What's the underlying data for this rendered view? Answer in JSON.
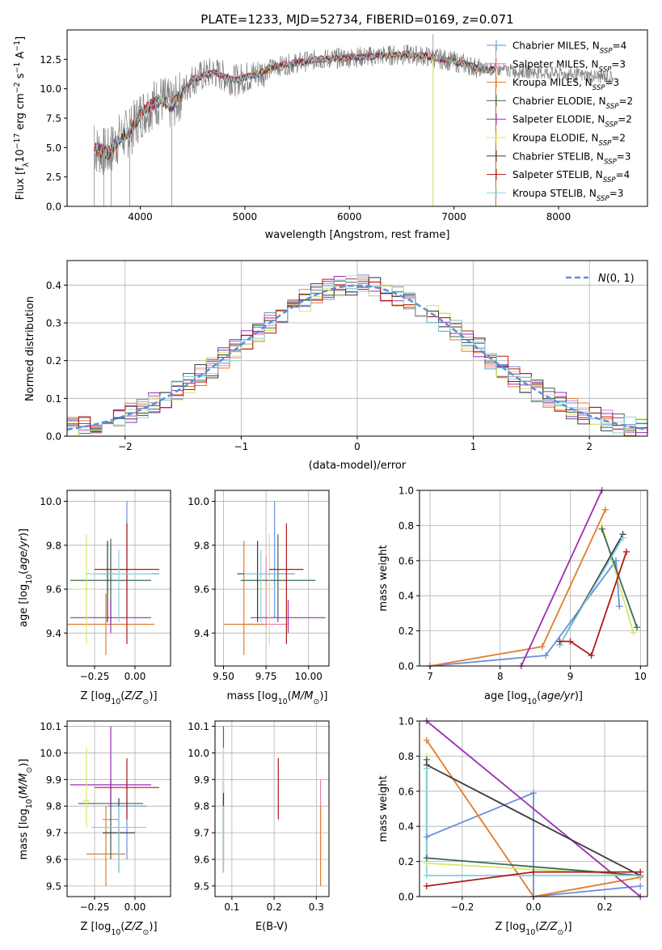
{
  "figure": {
    "title": "PLATE=1233, MJD=52734, FIBERID=0169, z=0.071"
  },
  "colors": {
    "Chabrier MILES": "#6a8fdc",
    "Salpeter MILES": "#ec7fb0",
    "Kroupa MILES": "#e07b2c",
    "Chabrier ELODIE": "#3b6b57",
    "Salpeter ELODIE": "#9a2fb5",
    "Kroupa ELODIE": "#d6e86a",
    "Chabrier STELIB": "#3a3a3a",
    "Salpeter STELIB": "#b01818",
    "Kroupa STELIB": "#86d3dd",
    "data": "#7f7f7f"
  },
  "chart_data": [
    {
      "type": "line",
      "title": "PLATE=1233, MJD=52734, FIBERID=0169, z=0.071",
      "xlabel": "wavelength [Angstrom, rest frame]",
      "ylabel": "Flux [f_λ 10^-17 erg cm^-2 s^-1 A^-1]",
      "xlim": [
        3300,
        8850
      ],
      "ylim": [
        0,
        15
      ],
      "xticks": [
        4000,
        5000,
        6000,
        7000,
        8000
      ],
      "yticks": [
        0.0,
        2.5,
        5.0,
        7.5,
        10.0,
        12.5
      ],
      "grid": false,
      "legend_position": "right",
      "legend": [
        {
          "name": "Chabrier MILES",
          "nssp": "4"
        },
        {
          "name": "Salpeter MILES",
          "nssp": "3"
        },
        {
          "name": "Kroupa MILES",
          "nssp": "3"
        },
        {
          "name": "Chabrier ELODIE",
          "nssp": "2"
        },
        {
          "name": "Salpeter ELODIE",
          "nssp": "2"
        },
        {
          "name": "Kroupa ELODIE",
          "nssp": "2"
        },
        {
          "name": "Chabrier STELIB",
          "nssp": "3"
        },
        {
          "name": "Salpeter STELIB",
          "nssp": "4"
        },
        {
          "name": "Kroupa STELIB",
          "nssp": "3"
        }
      ],
      "model_continuum": {
        "x": [
          3550,
          3700,
          3800,
          3900,
          4000,
          4100,
          4200,
          4300,
          4500,
          4700,
          4900,
          5100,
          5300,
          5500,
          5700,
          5900,
          6100,
          6300,
          6500,
          6700,
          6900,
          7100,
          7300
        ],
        "y": [
          4.9,
          4.5,
          5.8,
          6.3,
          7.8,
          8.6,
          9.1,
          8.5,
          10.8,
          11.4,
          10.7,
          11.2,
          11.9,
          12.2,
          12.5,
          12.6,
          12.7,
          12.8,
          12.9,
          12.8,
          12.5,
          12.1,
          11.6
        ]
      }
    },
    {
      "type": "line",
      "xlabel": "(data-model)/error",
      "ylabel": "Normed distribution",
      "xlim": [
        -2.5,
        2.5
      ],
      "ylim": [
        0,
        0.465
      ],
      "xticks": [
        -2,
        -1,
        0,
        1,
        2
      ],
      "yticks": [
        0.0,
        0.1,
        0.2,
        0.3,
        0.4
      ],
      "grid": true,
      "legend_position": "top-right",
      "reference_curve": "N(0,1)",
      "series": [
        {
          "name": "Chabrier MILES"
        },
        {
          "name": "Salpeter MILES"
        },
        {
          "name": "Kroupa MILES"
        },
        {
          "name": "Chabrier ELODIE"
        },
        {
          "name": "Salpeter ELODIE"
        },
        {
          "name": "Kroupa ELODIE"
        },
        {
          "name": "Chabrier STELIB"
        },
        {
          "name": "Salpeter STELIB"
        },
        {
          "name": "Kroupa STELIB"
        }
      ]
    },
    {
      "type": "scatter",
      "xlabel": "Z [log10(Z/Z⊙)]",
      "ylabel": "age [log10(age/yr)]",
      "xlim": [
        -0.42,
        0.22
      ],
      "ylim": [
        9.25,
        10.05
      ],
      "xticks": [
        -0.25,
        0.0
      ],
      "yticks": [
        9.4,
        9.6,
        9.8,
        10.0
      ],
      "grid": true,
      "points": [
        {
          "name": "Chabrier MILES",
          "x": -0.05,
          "xerr": 0.2,
          "y": 9.67,
          "ylo": 9.47,
          "yhi": 10.0
        },
        {
          "name": "Salpeter MILES",
          "x": -0.15,
          "xerr": 0.05,
          "y": 9.67,
          "ylo": 9.45,
          "yhi": 9.8
        },
        {
          "name": "Kroupa MILES",
          "x": -0.18,
          "xerr": 0.3,
          "y": 9.44,
          "ylo": 9.3,
          "yhi": 9.58
        },
        {
          "name": "Chabrier ELODIE",
          "x": -0.15,
          "xerr": 0.25,
          "y": 9.64,
          "ylo": 9.45,
          "yhi": 9.83
        },
        {
          "name": "Salpeter ELODIE",
          "x": -0.15,
          "xerr": 0.25,
          "y": 9.47,
          "ylo": 9.4,
          "yhi": 9.55
        },
        {
          "name": "Kroupa ELODIE",
          "x": -0.3,
          "xerr": 0.08,
          "y": 9.6,
          "ylo": 9.35,
          "yhi": 9.85
        },
        {
          "name": "Chabrier STELIB",
          "x": -0.17,
          "xerr": 0.06,
          "y": 9.67,
          "ylo": 9.45,
          "yhi": 9.82
        },
        {
          "name": "Salpeter STELIB",
          "x": -0.05,
          "xerr": 0.2,
          "y": 9.69,
          "ylo": 9.35,
          "yhi": 9.9
        },
        {
          "name": "Kroupa STELIB",
          "x": -0.1,
          "xerr": 0.2,
          "y": 9.67,
          "ylo": 9.45,
          "yhi": 9.78
        }
      ]
    },
    {
      "type": "scatter",
      "xlabel": "mass [log10(M/M⊙)]",
      "xlim": [
        9.45,
        10.12
      ],
      "ylim": [
        9.25,
        10.05
      ],
      "xticks": [
        9.5,
        9.75,
        10.0
      ],
      "yticks": [
        9.4,
        9.6,
        9.8,
        10.0
      ],
      "grid": true,
      "points": [
        {
          "name": "Chabrier MILES",
          "x": 9.8,
          "xerr": 0.12,
          "y": 9.67,
          "ylo": 9.47,
          "yhi": 10.0
        },
        {
          "name": "Salpeter MILES",
          "x": 9.75,
          "xerr": 0.12,
          "y": 9.44,
          "ylo": 9.43,
          "yhi": 9.75
        },
        {
          "name": "Kroupa MILES",
          "x": 9.62,
          "xerr": 0.12,
          "y": 9.44,
          "ylo": 9.3,
          "yhi": 9.82
        },
        {
          "name": "Chabrier ELODIE",
          "x": 9.82,
          "xerr": 0.22,
          "y": 9.64,
          "ylo": 9.45,
          "yhi": 9.85
        },
        {
          "name": "Salpeter ELODIE",
          "x": 9.88,
          "xerr": 0.22,
          "y": 9.47,
          "ylo": 9.4,
          "yhi": 9.55
        },
        {
          "name": "Kroupa ELODIE",
          "x": 9.77,
          "xerr": 0.05,
          "y": 9.6,
          "ylo": 9.35,
          "yhi": 9.85
        },
        {
          "name": "Chabrier STELIB",
          "x": 9.7,
          "xerr": 0.12,
          "y": 9.67,
          "ylo": 9.45,
          "yhi": 9.82
        },
        {
          "name": "Salpeter STELIB",
          "x": 9.87,
          "xerr": 0.1,
          "y": 9.69,
          "ylo": 9.35,
          "yhi": 9.9
        },
        {
          "name": "Kroupa STELIB",
          "x": 9.72,
          "xerr": 0.1,
          "y": 9.67,
          "ylo": 9.45,
          "yhi": 9.78
        }
      ]
    },
    {
      "type": "line",
      "xlabel": "age [log10(age/yr)]",
      "ylabel": "mass weight",
      "xlim": [
        6.85,
        10.1
      ],
      "ylim": [
        0,
        1.0
      ],
      "xticks": [
        7,
        8,
        9,
        10
      ],
      "yticks": [
        0.0,
        0.2,
        0.4,
        0.6,
        0.8,
        1.0
      ],
      "grid": true,
      "series": [
        {
          "name": "Chabrier MILES",
          "x": [
            7.0,
            8.65,
            9.65,
            9.7
          ],
          "y": [
            0.0,
            0.06,
            0.6,
            0.34
          ]
        },
        {
          "name": "Kroupa MILES",
          "x": [
            7.0,
            8.6,
            9.5
          ],
          "y": [
            0.0,
            0.11,
            0.89
          ]
        },
        {
          "name": "Salpeter ELODIE",
          "x": [
            8.3,
            9.45
          ],
          "y": [
            0.0,
            1.0
          ]
        },
        {
          "name": "Kroupa ELODIE",
          "x": [
            9.45,
            9.9
          ],
          "y": [
            0.8,
            0.19
          ]
        },
        {
          "name": "Chabrier ELODIE",
          "x": [
            9.45,
            9.95
          ],
          "y": [
            0.78,
            0.22
          ]
        },
        {
          "name": "Chabrier STELIB",
          "x": [
            8.85,
            9.75
          ],
          "y": [
            0.12,
            0.75
          ]
        },
        {
          "name": "Kroupa STELIB",
          "x": [
            8.85,
            9.75
          ],
          "y": [
            0.12,
            0.73
          ]
        },
        {
          "name": "Salpeter STELIB",
          "x": [
            8.85,
            9.0,
            9.3,
            9.8
          ],
          "y": [
            0.14,
            0.14,
            0.06,
            0.65
          ]
        }
      ]
    },
    {
      "type": "scatter",
      "xlabel": "Z [log10(Z/Z⊙)]",
      "ylabel": "mass [log10(M/M⊙)]",
      "xlim": [
        -0.42,
        0.22
      ],
      "ylim": [
        9.46,
        10.12
      ],
      "xticks": [
        -0.25,
        0.0
      ],
      "yticks": [
        9.5,
        9.6,
        9.7,
        9.8,
        9.9,
        10.0,
        10.1
      ],
      "grid": true,
      "points": [
        {
          "name": "Chabrier MILES",
          "x": -0.05,
          "xerr": 0.12,
          "y": 9.8,
          "ylo": 9.6,
          "yhi": 9.9
        },
        {
          "name": "Salpeter MILES",
          "x": -0.15,
          "xerr": 0.05,
          "y": 9.75,
          "ylo": 9.6,
          "yhi": 9.9
        },
        {
          "name": "Kroupa MILES",
          "x": -0.18,
          "xerr": 0.12,
          "y": 9.62,
          "ylo": 9.5,
          "yhi": 9.8
        },
        {
          "name": "Chabrier ELODIE",
          "x": -0.15,
          "xerr": 0.2,
          "y": 9.81,
          "ylo": 9.6,
          "yhi": 9.9
        },
        {
          "name": "Salpeter ELODIE",
          "x": -0.15,
          "xerr": 0.25,
          "y": 9.88,
          "ylo": 9.8,
          "yhi": 10.1
        },
        {
          "name": "Kroupa ELODIE",
          "x": -0.3,
          "xerr": 0.02,
          "y": 9.82,
          "ylo": 9.72,
          "yhi": 10.02
        },
        {
          "name": "Chabrier STELIB",
          "x": -0.1,
          "xerr": 0.1,
          "y": 9.7,
          "ylo": 9.55,
          "yhi": 9.83
        },
        {
          "name": "Salpeter STELIB",
          "x": -0.05,
          "xerr": 0.2,
          "y": 9.87,
          "ylo": 9.75,
          "yhi": 9.98
        },
        {
          "name": "Kroupa STELIB",
          "x": -0.1,
          "xerr": 0.17,
          "y": 9.72,
          "ylo": 9.55,
          "yhi": 9.8
        }
      ]
    },
    {
      "type": "scatter",
      "xlabel": "E(B-V)",
      "xlim": [
        0.06,
        0.33
      ],
      "ylim": [
        9.46,
        10.12
      ],
      "xticks": [
        0.1,
        0.2,
        0.3
      ],
      "yticks": [
        9.5,
        9.6,
        9.7,
        9.8,
        9.9,
        10.0,
        10.1
      ],
      "grid": true,
      "points": [
        {
          "name": "Chabrier MILES",
          "x": 0.08,
          "y": 9.8,
          "ylo": 9.6,
          "yhi": 9.9
        },
        {
          "name": "Salpeter MILES",
          "x": 0.31,
          "y": 9.75,
          "ylo": 9.6,
          "yhi": 9.9
        },
        {
          "name": "Kroupa MILES",
          "x": 0.31,
          "y": 9.62,
          "ylo": 9.5,
          "yhi": 9.8
        },
        {
          "name": "Chabrier ELODIE",
          "x": 0.08,
          "y": 9.81,
          "ylo": 9.55,
          "yhi": 9.9
        },
        {
          "name": "Salpeter ELODIE",
          "x": 0.08,
          "y": 9.88,
          "ylo": 9.8,
          "yhi": 10.1
        },
        {
          "name": "Kroupa ELODIE",
          "x": 0.08,
          "y": 9.82,
          "ylo": 9.72,
          "yhi": 10.02
        },
        {
          "name": "Chabrier STELIB",
          "x": 0.08,
          "y": 9.7,
          "ylo": 9.55,
          "yhi": 9.85
        },
        {
          "name": "Salpeter STELIB",
          "x": 0.21,
          "y": 9.87,
          "ylo": 9.75,
          "yhi": 9.98
        },
        {
          "name": "Kroupa STELIB",
          "x": 0.08,
          "y": 9.72,
          "ylo": 9.55,
          "yhi": 9.8
        }
      ]
    },
    {
      "type": "line",
      "xlabel": "Z [log10(Z/Z⊙)]",
      "ylabel": "mass weight",
      "xlim": [
        -0.32,
        0.32
      ],
      "ylim": [
        0,
        1.0
      ],
      "xticks": [
        -0.2,
        0.0,
        0.2
      ],
      "yticks": [
        0.0,
        0.2,
        0.4,
        0.6,
        0.8,
        1.0
      ],
      "grid": true,
      "series": [
        {
          "name": "Chabrier MILES",
          "x": [
            -0.3,
            0.0,
            0.0,
            0.3
          ],
          "y": [
            0.34,
            0.59,
            0.0,
            0.06
          ]
        },
        {
          "name": "Kroupa MILES",
          "x": [
            -0.3,
            0.0,
            0.3
          ],
          "y": [
            0.89,
            0.0,
            0.11
          ]
        },
        {
          "name": "Salpeter ELODIE",
          "x": [
            -0.3,
            0.3
          ],
          "y": [
            1.0,
            0.0
          ]
        },
        {
          "name": "Kroupa ELODIE",
          "x": [
            -0.3,
            -0.3,
            0.3
          ],
          "y": [
            0.8,
            0.19,
            0.12
          ]
        },
        {
          "name": "Chabrier ELODIE",
          "x": [
            -0.3,
            -0.3,
            0.3
          ],
          "y": [
            0.78,
            0.22,
            0.12
          ]
        },
        {
          "name": "Chabrier STELIB",
          "x": [
            -0.3,
            0.3
          ],
          "y": [
            0.75,
            0.12
          ]
        },
        {
          "name": "Kroupa STELIB",
          "x": [
            -0.3,
            -0.3,
            0.3
          ],
          "y": [
            0.73,
            0.12,
            0.12
          ]
        },
        {
          "name": "Salpeter STELIB",
          "x": [
            -0.3,
            0.0,
            0.3
          ],
          "y": [
            0.06,
            0.14,
            0.14
          ]
        }
      ]
    }
  ]
}
